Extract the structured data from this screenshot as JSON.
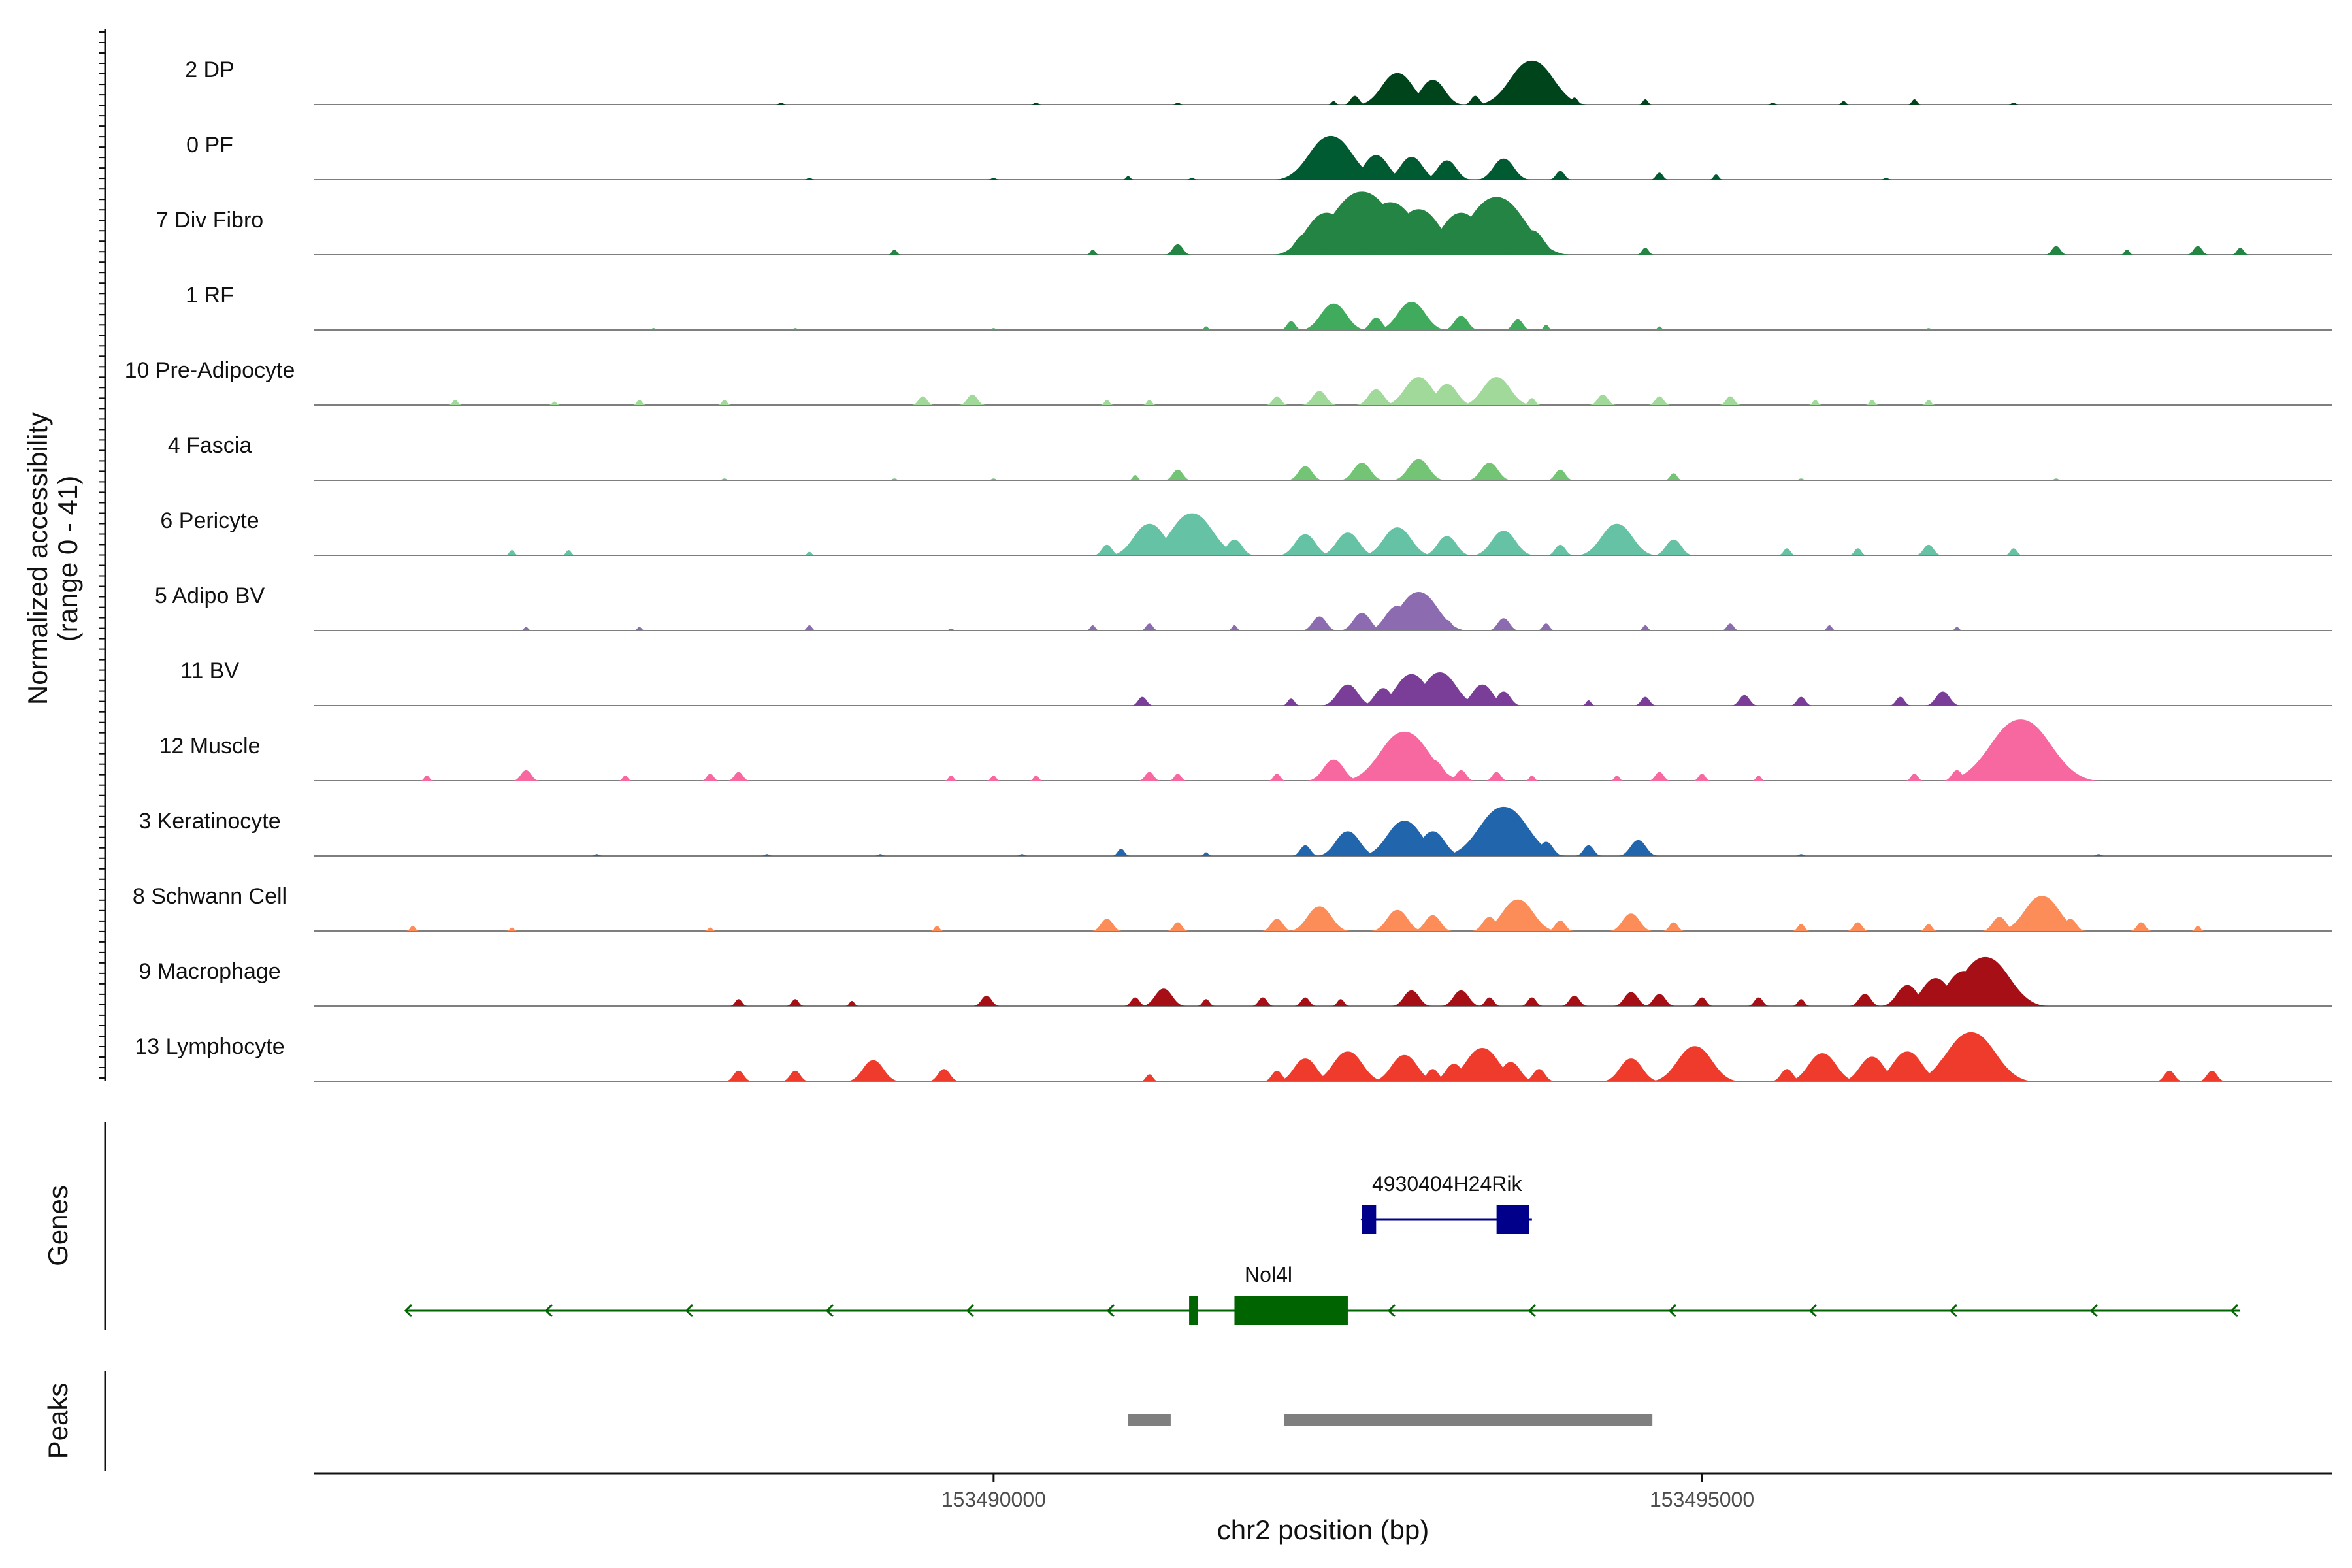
{
  "chart_data": {
    "type": "area",
    "title": "",
    "ylabel": "Normalized accessibility",
    "ylabel_range": "(range 0 - 41)",
    "ylim": [
      0,
      41
    ],
    "xlabel": "chr2 position (bp)",
    "xlim": [
      153485200,
      153499450
    ],
    "x_ticks": [
      {
        "value": 153490000,
        "label": "153490000"
      },
      {
        "value": 153495000,
        "label": "153495000"
      }
    ],
    "tracks": [
      {
        "name": "2 DP",
        "color": "#00441b",
        "peaks": [
          [
            153488500,
            1
          ],
          [
            153490300,
            1
          ],
          [
            153491300,
            1
          ],
          [
            153492400,
            2
          ],
          [
            153492550,
            5
          ],
          [
            153492800,
            11
          ],
          [
            153492850,
            18
          ],
          [
            153493100,
            14
          ],
          [
            153493400,
            5
          ],
          [
            153493700,
            9
          ],
          [
            153493800,
            25
          ],
          [
            153493900,
            13
          ],
          [
            153494100,
            4
          ],
          [
            153494600,
            3
          ],
          [
            153495500,
            1
          ],
          [
            153496000,
            2
          ],
          [
            153496500,
            3
          ],
          [
            153497200,
            1
          ]
        ]
      },
      {
        "name": "0 PF",
        "color": "#005a32",
        "peaks": [
          [
            153488700,
            1
          ],
          [
            153490000,
            1
          ],
          [
            153490950,
            2
          ],
          [
            153491400,
            1
          ],
          [
            153492380,
            25
          ],
          [
            153492700,
            14
          ],
          [
            153492950,
            13
          ],
          [
            153493200,
            11
          ],
          [
            153493600,
            12
          ],
          [
            153494000,
            5
          ],
          [
            153494700,
            4
          ],
          [
            153495100,
            3
          ],
          [
            153496300,
            1
          ]
        ]
      },
      {
        "name": "7 Div Fibro",
        "color": "#238443",
        "peaks": [
          [
            153489300,
            3
          ],
          [
            153490700,
            3
          ],
          [
            153491300,
            6
          ],
          [
            153492200,
            12
          ],
          [
            153492350,
            24
          ],
          [
            153492600,
            36
          ],
          [
            153492800,
            30
          ],
          [
            153493000,
            26
          ],
          [
            153493300,
            24
          ],
          [
            153493550,
            33
          ],
          [
            153493800,
            14
          ],
          [
            153494600,
            4
          ],
          [
            153497500,
            5
          ],
          [
            153498000,
            3
          ],
          [
            153498500,
            5
          ],
          [
            153498800,
            4
          ]
        ]
      },
      {
        "name": "1 RF",
        "color": "#41ab5d",
        "peaks": [
          [
            153487600,
            1
          ],
          [
            153488600,
            1
          ],
          [
            153490000,
            1
          ],
          [
            153491500,
            2
          ],
          [
            153492100,
            5
          ],
          [
            153492400,
            15
          ],
          [
            153492700,
            7
          ],
          [
            153492950,
            16
          ],
          [
            153493300,
            8
          ],
          [
            153493700,
            6
          ],
          [
            153493900,
            3
          ],
          [
            153494700,
            2
          ],
          [
            153496600,
            1
          ]
        ]
      },
      {
        "name": "10 Pre-Adipocyte",
        "color": "#a1d99b",
        "peaks": [
          [
            153486200,
            3
          ],
          [
            153486900,
            2
          ],
          [
            153487500,
            3
          ],
          [
            153488100,
            3
          ],
          [
            153489500,
            5
          ],
          [
            153489850,
            6
          ],
          [
            153490800,
            3
          ],
          [
            153491100,
            3
          ],
          [
            153492000,
            5
          ],
          [
            153492300,
            8
          ],
          [
            153492700,
            9
          ],
          [
            153493000,
            16
          ],
          [
            153493200,
            12
          ],
          [
            153493550,
            16
          ],
          [
            153493800,
            4
          ],
          [
            153494300,
            6
          ],
          [
            153494700,
            5
          ],
          [
            153495200,
            5
          ],
          [
            153495800,
            3
          ],
          [
            153496200,
            3
          ],
          [
            153496600,
            3
          ]
        ]
      },
      {
        "name": "4 Fascia",
        "color": "#74c476",
        "peaks": [
          [
            153488100,
            1
          ],
          [
            153489300,
            1
          ],
          [
            153490000,
            1
          ],
          [
            153491000,
            3
          ],
          [
            153491300,
            6
          ],
          [
            153492200,
            8
          ],
          [
            153492600,
            10
          ],
          [
            153493000,
            12
          ],
          [
            153493500,
            10
          ],
          [
            153494000,
            6
          ],
          [
            153494800,
            4
          ],
          [
            153495700,
            1
          ],
          [
            153497500,
            1
          ]
        ]
      },
      {
        "name": "6 Pericyte",
        "color": "#66c2a4",
        "peaks": [
          [
            153486600,
            3
          ],
          [
            153487000,
            3
          ],
          [
            153488700,
            2
          ],
          [
            153490800,
            6
          ],
          [
            153491100,
            18
          ],
          [
            153491400,
            24
          ],
          [
            153491700,
            9
          ],
          [
            153492200,
            12
          ],
          [
            153492500,
            13
          ],
          [
            153492850,
            16
          ],
          [
            153493200,
            11
          ],
          [
            153493600,
            14
          ],
          [
            153494000,
            6
          ],
          [
            153494400,
            18
          ],
          [
            153494800,
            9
          ],
          [
            153495600,
            4
          ],
          [
            153496100,
            4
          ],
          [
            153496600,
            6
          ],
          [
            153497200,
            4
          ]
        ]
      },
      {
        "name": "5 Adipo BV",
        "color": "#8c6bb1",
        "peaks": [
          [
            153486700,
            2
          ],
          [
            153487500,
            2
          ],
          [
            153488700,
            3
          ],
          [
            153489700,
            1
          ],
          [
            153490700,
            3
          ],
          [
            153491100,
            4
          ],
          [
            153491700,
            3
          ],
          [
            153492300,
            8
          ],
          [
            153492600,
            10
          ],
          [
            153492850,
            14
          ],
          [
            153493000,
            22
          ],
          [
            153493200,
            6
          ],
          [
            153493600,
            7
          ],
          [
            153493900,
            4
          ],
          [
            153494600,
            3
          ],
          [
            153495200,
            4
          ],
          [
            153495900,
            3
          ],
          [
            153496800,
            2
          ]
        ]
      },
      {
        "name": "11 BV",
        "color": "#7a3e99",
        "peaks": [
          [
            153491050,
            5
          ],
          [
            153492100,
            4
          ],
          [
            153492500,
            12
          ],
          [
            153492750,
            10
          ],
          [
            153492950,
            18
          ],
          [
            153493150,
            19
          ],
          [
            153493450,
            12
          ],
          [
            153493600,
            8
          ],
          [
            153494200,
            3
          ],
          [
            153494600,
            5
          ],
          [
            153495300,
            6
          ],
          [
            153495700,
            5
          ],
          [
            153496400,
            5
          ],
          [
            153496700,
            8
          ]
        ]
      },
      {
        "name": "12 Muscle",
        "color": "#f768a1",
        "peaks": [
          [
            153486000,
            3
          ],
          [
            153486700,
            6
          ],
          [
            153487400,
            3
          ],
          [
            153488000,
            4
          ],
          [
            153488200,
            5
          ],
          [
            153489700,
            3
          ],
          [
            153490000,
            3
          ],
          [
            153490300,
            3
          ],
          [
            153491100,
            5
          ],
          [
            153491300,
            4
          ],
          [
            153492000,
            4
          ],
          [
            153492400,
            12
          ],
          [
            153492900,
            28
          ],
          [
            153493100,
            12
          ],
          [
            153493300,
            6
          ],
          [
            153493550,
            5
          ],
          [
            153493800,
            3
          ],
          [
            153494400,
            3
          ],
          [
            153494700,
            5
          ],
          [
            153495000,
            4
          ],
          [
            153495400,
            3
          ],
          [
            153496500,
            4
          ],
          [
            153496800,
            6
          ],
          [
            153497250,
            35
          ],
          [
            153497400,
            14
          ]
        ]
      },
      {
        "name": "3 Keratinocyte",
        "color": "#2166ac",
        "peaks": [
          [
            153487200,
            1
          ],
          [
            153488400,
            1
          ],
          [
            153489200,
            1
          ],
          [
            153490200,
            1
          ],
          [
            153490900,
            4
          ],
          [
            153491500,
            2
          ],
          [
            153492200,
            6
          ],
          [
            153492500,
            14
          ],
          [
            153492900,
            20
          ],
          [
            153493100,
            14
          ],
          [
            153493600,
            28
          ],
          [
            153493900,
            8
          ],
          [
            153494200,
            6
          ],
          [
            153494550,
            9
          ],
          [
            153495700,
            1
          ],
          [
            153497800,
            1
          ]
        ]
      },
      {
        "name": "8 Schwann Cell",
        "color": "#fc8d59",
        "peaks": [
          [
            153485900,
            3
          ],
          [
            153486600,
            2
          ],
          [
            153488000,
            2
          ],
          [
            153489600,
            3
          ],
          [
            153490800,
            7
          ],
          [
            153491300,
            5
          ],
          [
            153492000,
            7
          ],
          [
            153492300,
            14
          ],
          [
            153492850,
            12
          ],
          [
            153493100,
            9
          ],
          [
            153493500,
            8
          ],
          [
            153493700,
            18
          ],
          [
            153494000,
            6
          ],
          [
            153494500,
            10
          ],
          [
            153494800,
            5
          ],
          [
            153495700,
            4
          ],
          [
            153496100,
            5
          ],
          [
            153496600,
            4
          ],
          [
            153497100,
            8
          ],
          [
            153497400,
            20
          ],
          [
            153497600,
            7
          ],
          [
            153498100,
            5
          ],
          [
            153498500,
            3
          ]
        ]
      },
      {
        "name": "9 Macrophage",
        "color": "#a50f15",
        "peaks": [
          [
            153488200,
            4
          ],
          [
            153488600,
            4
          ],
          [
            153489000,
            3
          ],
          [
            153489950,
            6
          ],
          [
            153491000,
            5
          ],
          [
            153491200,
            10
          ],
          [
            153491500,
            4
          ],
          [
            153491900,
            5
          ],
          [
            153492200,
            5
          ],
          [
            153492450,
            4
          ],
          [
            153492950,
            9
          ],
          [
            153493300,
            9
          ],
          [
            153493500,
            5
          ],
          [
            153493800,
            5
          ],
          [
            153494100,
            6
          ],
          [
            153494500,
            8
          ],
          [
            153494700,
            7
          ],
          [
            153495000,
            5
          ],
          [
            153495400,
            5
          ],
          [
            153495700,
            4
          ],
          [
            153496150,
            7
          ],
          [
            153496450,
            12
          ],
          [
            153496650,
            16
          ],
          [
            153496850,
            20
          ],
          [
            153497000,
            28
          ],
          [
            153497300,
            4
          ]
        ]
      },
      {
        "name": "13 Lymphocyte",
        "color": "#ef3b2c",
        "peaks": [
          [
            153488200,
            6
          ],
          [
            153488600,
            6
          ],
          [
            153489150,
            12
          ],
          [
            153489650,
            7
          ],
          [
            153491100,
            4
          ],
          [
            153492000,
            6
          ],
          [
            153492200,
            13
          ],
          [
            153492500,
            17
          ],
          [
            153492900,
            15
          ],
          [
            153493100,
            7
          ],
          [
            153493250,
            10
          ],
          [
            153493450,
            19
          ],
          [
            153493650,
            11
          ],
          [
            153493850,
            7
          ],
          [
            153494500,
            13
          ],
          [
            153494950,
            20
          ],
          [
            153495600,
            7
          ],
          [
            153495850,
            16
          ],
          [
            153496200,
            14
          ],
          [
            153496450,
            17
          ],
          [
            153496750,
            15
          ],
          [
            153496900,
            28
          ],
          [
            153498300,
            6
          ],
          [
            153498600,
            6
          ]
        ]
      }
    ],
    "gene_axis_title": "Genes",
    "genes": [
      {
        "name": "4930404H24Rik",
        "color": "#00008b",
        "strand": "-",
        "start": 153492600,
        "end": 153493800,
        "exons": [
          [
            153492600,
            153492700
          ],
          [
            153493550,
            153493780
          ]
        ]
      },
      {
        "name": "Nol4l",
        "color": "#006400",
        "strand": "-",
        "start": 153485850,
        "end": 153498800,
        "exons": [
          [
            153491380,
            153491440
          ],
          [
            153491700,
            153492500
          ]
        ]
      }
    ],
    "peak_axis_title": "Peaks",
    "peak_regions": [
      [
        153490950,
        153491250
      ],
      [
        153492050,
        153494650
      ]
    ]
  }
}
